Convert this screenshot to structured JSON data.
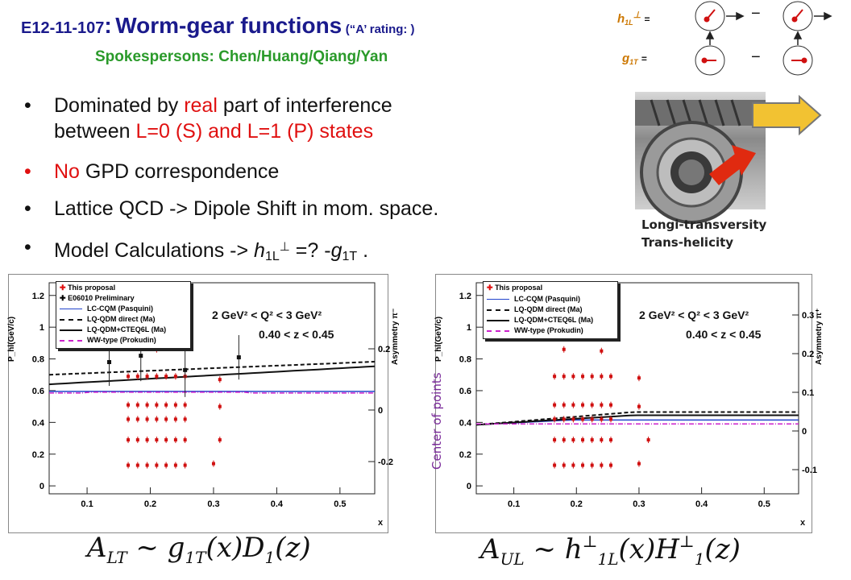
{
  "header": {
    "code": "E12-11-107",
    "colon": ":",
    "title": "Worm-gear functions",
    "rating": "(“A’  rating: )",
    "spokespersons": "Spokespersons: Chen/Huang/Qiang/Yan"
  },
  "diagram": {
    "h_label": "h",
    "h_sub": "1L",
    "h_sup": "⊥",
    "g_label": "g",
    "g_sub": "1T",
    "equals": "=",
    "minus": "−"
  },
  "bullets": [
    {
      "pre": "Dominated by ",
      "red": "real",
      "post": " part of interference"
    },
    {
      "line2_pre": "between ",
      "line2_red": "L=0 (S) and L=1 (P) states"
    },
    {
      "red": "No",
      "post": " GPD correspondence"
    },
    {
      "text": "Lattice  QCD -> Dipole Shift in mom. space."
    },
    {
      "pre": "Model Calculations -> ",
      "h": "h",
      "h_sub": "1L",
      "h_sup": "⊥",
      "mid": " =? -",
      "g": "g",
      "g_sub": "1T",
      "end": "  ."
    }
  ],
  "bullet_marks": [
    "•",
    "•",
    "•",
    "•"
  ],
  "image_caption": {
    "line1": "Longi-transversity",
    "line2": "Trans-helicity"
  },
  "plot_left": {
    "ylabel": "P_hl(GeV/c)",
    "y2label": "Asymmetry π⁻",
    "xlabel": "x",
    "kin1": "2 GeV² < Q² < 3 GeV²",
    "kin2": "0.40 < z < 0.45",
    "yticks": [
      "1.2",
      "1",
      "0.8",
      "0.6",
      "0.4",
      "0.2",
      "0"
    ],
    "y2ticks": [
      "0.2",
      "0",
      "-0.2"
    ],
    "xticks": [
      "0.1",
      "0.2",
      "0.3",
      "0.4",
      "0.5"
    ],
    "legend": [
      "This proposal",
      "E06010 Preliminary",
      "LC-CQM (Pasquini)",
      "LQ-QDM direct (Ma)",
      "LQ-QDM+CTEQ6L (Ma)",
      "WW-type (Prokudin)"
    ]
  },
  "plot_right": {
    "ylabel": "P_hl(GeV/c)",
    "y2label": "Asymmetry π⁺",
    "xlabel": "x",
    "overlay": "Center of points",
    "kin1": "2 GeV² < Q² < 3 GeV²",
    "kin2": "0.40 < z < 0.45",
    "yticks": [
      "1.2",
      "1",
      "0.8",
      "0.6",
      "0.4",
      "0.2",
      "0"
    ],
    "y2ticks": [
      "0.3",
      "0.2",
      "0.1",
      "0",
      "-0.1"
    ],
    "xticks": [
      "0.1",
      "0.2",
      "0.3",
      "0.4",
      "0.5"
    ],
    "legend": [
      "This proposal",
      "LC-CQM (Pasquini)",
      "LQ-QDM direct (Ma)",
      "LQ-QDM+CTEQ6L (Ma)",
      "WW-type (Prokudin)"
    ]
  },
  "formula_left": {
    "A": "A",
    "sub": "LT",
    "rest": " ~ g",
    "sub2": "1T",
    "rest2": "(x)D",
    "sub3": "1",
    "rest3": "(z)"
  },
  "formula_right": {
    "A": "A",
    "sub": "UL",
    "rest": " ~ h",
    "sup": "⊥",
    "sub2": "1L",
    "rest2": "(x)H",
    "sup2": "⊥",
    "sub3": "1",
    "rest3": "(z)"
  },
  "colors": {
    "title": "#1a1a8c",
    "spokes": "#2a9a2a",
    "accent_red": "#e01010",
    "diagram_label": "#cc7700"
  }
}
